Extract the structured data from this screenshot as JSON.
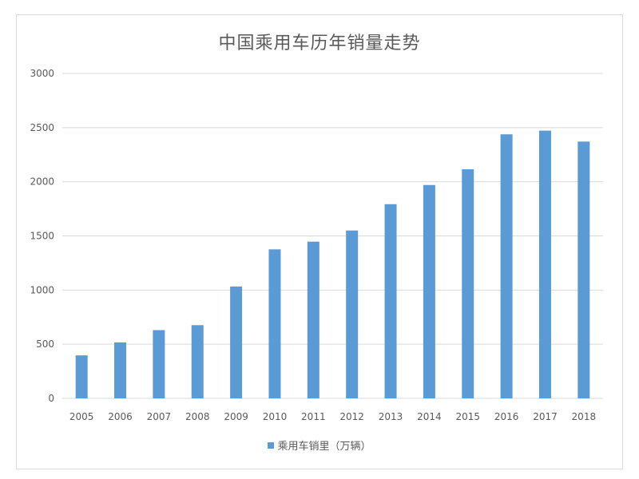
{
  "chart_data": {
    "type": "bar",
    "title": "中国乘用车历年销量走势",
    "categories": [
      "2005",
      "2006",
      "2007",
      "2008",
      "2009",
      "2010",
      "2011",
      "2012",
      "2013",
      "2014",
      "2015",
      "2016",
      "2017",
      "2018"
    ],
    "series": [
      {
        "name": "乘用车销里（万辆）",
        "values": [
          397,
          517,
          630,
          676,
          1033,
          1376,
          1447,
          1550,
          1793,
          1970,
          2115,
          2438,
          2472,
          2371
        ]
      }
    ],
    "ylim": [
      0,
      3000
    ],
    "yticks": [
      0,
      500,
      1000,
      1500,
      2000,
      2500,
      3000
    ],
    "xlabel": "",
    "ylabel": "",
    "grid": true,
    "legend_position": "bottom",
    "colors": {
      "bar": "#5B9BD5",
      "grid": "#d9d9d9",
      "text": "#595959"
    }
  }
}
